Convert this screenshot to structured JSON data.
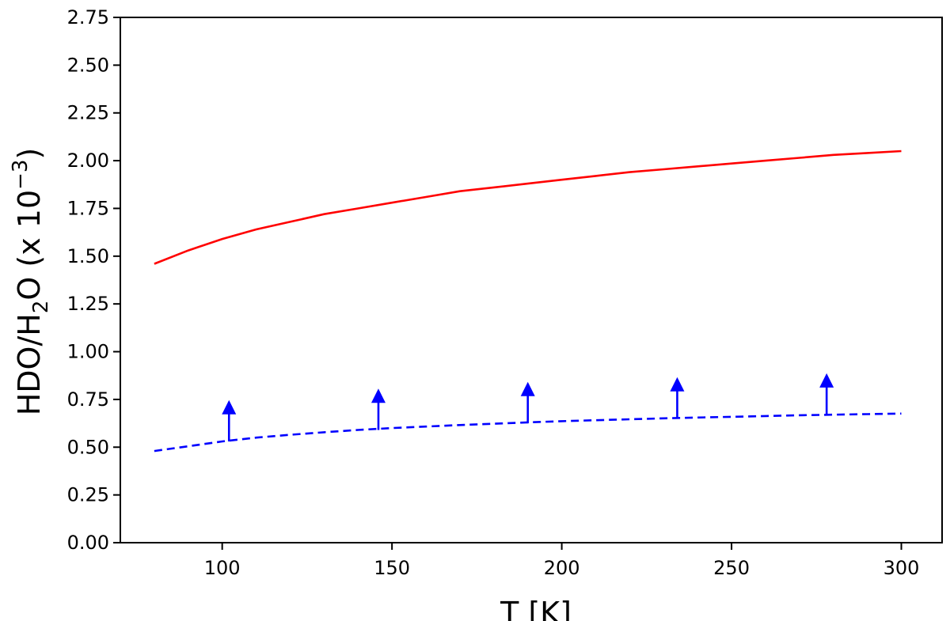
{
  "chart_data": {
    "type": "line",
    "title": "",
    "xlabel": "T [K]",
    "ylabel": {
      "prefix": "HDO/H",
      "subscript": "2",
      "middle": "O  (x 10",
      "superscript": "−3",
      "suffix": ")"
    },
    "xlim": [
      70,
      312
    ],
    "ylim": [
      0,
      2.75
    ],
    "xticks": [
      100,
      150,
      200,
      250,
      300
    ],
    "xtick_labels": [
      "100",
      "150",
      "200",
      "250",
      "300"
    ],
    "yticks": [
      0,
      0.25,
      0.5,
      0.75,
      1.0,
      1.25,
      1.5,
      1.75,
      2.0,
      2.25,
      2.5,
      2.75
    ],
    "ytick_labels": [
      "0.00",
      "0.25",
      "0.50",
      "0.75",
      "1.00",
      "1.25",
      "1.50",
      "1.75",
      "2.00",
      "2.25",
      "2.50",
      "2.75"
    ],
    "grid": false,
    "legend": "none",
    "series": [
      {
        "color": "#ff0000",
        "linestyle": "solid",
        "x": [
          80,
          90,
          100,
          110,
          120,
          130,
          140,
          150,
          160,
          170,
          180,
          190,
          200,
          210,
          220,
          230,
          240,
          250,
          260,
          270,
          280,
          290,
          300
        ],
        "y": [
          1.46,
          1.53,
          1.59,
          1.64,
          1.68,
          1.72,
          1.75,
          1.78,
          1.81,
          1.84,
          1.86,
          1.88,
          1.9,
          1.92,
          1.94,
          1.955,
          1.97,
          1.985,
          2.0,
          2.015,
          2.03,
          2.04,
          2.05
        ]
      },
      {
        "color": "#0000ff",
        "linestyle": "dashed",
        "x": [
          80,
          90,
          100,
          110,
          120,
          130,
          140,
          150,
          160,
          170,
          180,
          190,
          200,
          210,
          220,
          230,
          240,
          250,
          260,
          270,
          280,
          290,
          300
        ],
        "y": [
          0.48,
          0.505,
          0.53,
          0.55,
          0.565,
          0.578,
          0.59,
          0.6,
          0.608,
          0.616,
          0.623,
          0.63,
          0.636,
          0.641,
          0.646,
          0.651,
          0.655,
          0.659,
          0.663,
          0.667,
          0.67,
          0.673,
          0.676
        ]
      }
    ],
    "lower_limit_arrows": {
      "color": "#0000ff",
      "points": [
        {
          "x": 102,
          "y_base": 0.53,
          "y_tip": 0.73
        },
        {
          "x": 146,
          "y_base": 0.59,
          "y_tip": 0.79
        },
        {
          "x": 190,
          "y_base": 0.625,
          "y_tip": 0.825
        },
        {
          "x": 234,
          "y_base": 0.65,
          "y_tip": 0.85
        },
        {
          "x": 278,
          "y_base": 0.67,
          "y_tip": 0.87
        }
      ]
    }
  }
}
